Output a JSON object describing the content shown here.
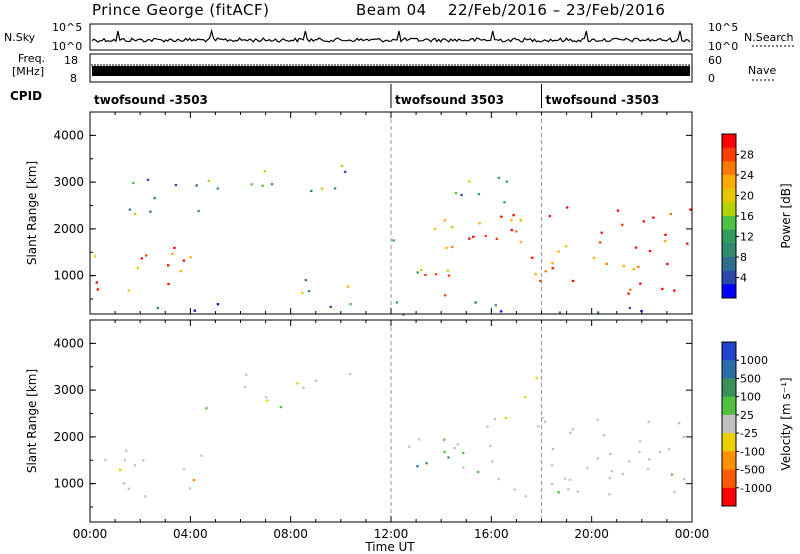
{
  "header": {
    "station": "Prince George (fitACF)",
    "beam": "Beam 04",
    "date_range": "22/Feb/2016 – 23/Feb/2016"
  },
  "strip": {
    "nsky_label": "N.Sky",
    "nsky_ticks": [
      "10^5",
      "10^0"
    ],
    "nsearch_label": "N.Search",
    "nsearch_ticks": [
      "10^5",
      "10^0"
    ],
    "freq_label_1": "Freq.",
    "freq_label_2": "[MHz]",
    "freq_ticks": [
      "18",
      "8"
    ],
    "nave_label": "Nave",
    "nave_ticks": [
      "60",
      "0"
    ],
    "cpid_label": "CPID"
  },
  "cpid_segments": [
    {
      "start_hour": 0,
      "end_hour": 12,
      "name": "twofsound -3503"
    },
    {
      "start_hour": 12,
      "end_hour": 18,
      "name": "twofsound 3503"
    },
    {
      "start_hour": 18,
      "end_hour": 24,
      "name": "twofsound -3503"
    }
  ],
  "chart_data": [
    {
      "type": "heatmap",
      "quantity": "Power",
      "ylabel": "Slant Range [km]",
      "ylim": [
        180,
        4500
      ],
      "yticks": [
        "1000",
        "2000",
        "3000",
        "4000"
      ],
      "xlim": [
        0,
        24
      ],
      "colorbar_label": "Power [dB]",
      "colorbar_ticks": [
        "28",
        "24",
        "20",
        "16",
        "12",
        "8",
        "4"
      ],
      "colorbar_colors": [
        "#ff0000",
        "#ff3c00",
        "#ff7800",
        "#ffab00",
        "#e6c800",
        "#b4d200",
        "#4ec247",
        "#2f9d5f",
        "#2f8a6e",
        "#2e6d8e",
        "#2849a8",
        "#0000ff"
      ],
      "regions": [
        {
          "t0": 0.0,
          "t1": 4.6,
          "r0": 700,
          "r1": 1800,
          "level": 0.85
        },
        {
          "t0": 1.5,
          "t1": 4.8,
          "r0": 2300,
          "r1": 3300,
          "level": 0.35
        },
        {
          "t0": 4.5,
          "t1": 10.5,
          "r0": 2600,
          "r1": 3400,
          "level": 0.3
        },
        {
          "t0": 8.0,
          "t1": 10.5,
          "r0": 650,
          "r1": 1300,
          "level": 0.45
        },
        {
          "t0": 12.0,
          "t1": 15.0,
          "r0": 1000,
          "r1": 2300,
          "level": 0.6
        },
        {
          "t0": 14.0,
          "t1": 24.0,
          "r0": 600,
          "r1": 2500,
          "level": 0.9
        },
        {
          "t0": 14.5,
          "t1": 18.0,
          "r0": 2500,
          "r1": 3400,
          "level": 0.35
        },
        {
          "t0": 0.0,
          "t1": 24.0,
          "r0": 180,
          "r1": 500,
          "level": 0.25
        }
      ]
    },
    {
      "type": "heatmap",
      "quantity": "Velocity",
      "ylabel": "Slant Range [km]",
      "ylim": [
        180,
        4500
      ],
      "yticks": [
        "1000",
        "2000",
        "3000",
        "4000"
      ],
      "xlim": [
        0,
        24
      ],
      "xticks": [
        "00:00",
        "04:00",
        "08:00",
        "12:00",
        "16:00",
        "20:00",
        "00:00"
      ],
      "xlabel": "Time UT",
      "colorbar_label": "Velocity [m s⁻¹]",
      "colorbar_ticks": [
        "1000",
        "500",
        "100",
        "25",
        "-25",
        "-100",
        "-500",
        "-1000"
      ],
      "colorbar_colors": [
        "#2244cc",
        "#2a6ea8",
        "#3b8f5a",
        "#54c040",
        "#c0c0c0",
        "#e8d000",
        "#ff9000",
        "#ff5a00",
        "#ff0000"
      ],
      "regions": [
        {
          "t0": 0.0,
          "t1": 4.6,
          "r0": 700,
          "r1": 1800,
          "vel": "ground"
        },
        {
          "t0": 3.3,
          "t1": 4.6,
          "r0": 900,
          "r1": 1400,
          "vel": "neg"
        },
        {
          "t0": 4.5,
          "t1": 10.5,
          "r0": 2600,
          "r1": 3400,
          "vel": "ground"
        },
        {
          "t0": 12.5,
          "t1": 15.2,
          "r0": 1000,
          "r1": 2000,
          "vel": "pos"
        },
        {
          "t0": 14.0,
          "t1": 24.0,
          "r0": 700,
          "r1": 2500,
          "vel": "ground"
        },
        {
          "t0": 15.0,
          "t1": 18.0,
          "r0": 2800,
          "r1": 3400,
          "vel": "neg"
        }
      ]
    }
  ]
}
